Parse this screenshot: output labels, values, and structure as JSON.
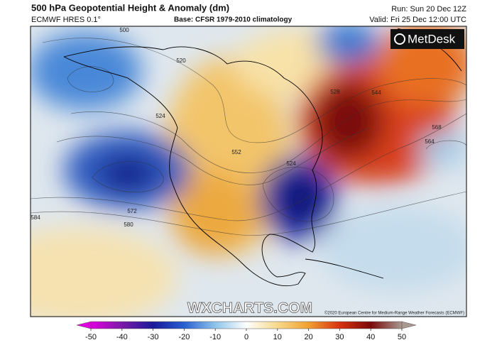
{
  "header": {
    "title": "500 hPa Geopotential Height & Anomaly (dm)",
    "model": "ECMWF HRES 0.1°",
    "base": "Base: CFSR 1979-2010 climatology",
    "run": "Run: Sun 20 Dec 12Z",
    "valid": "Valid: Fri 25 Dec 12:00 UTC"
  },
  "logo": "MetDesk",
  "watermark": "WXCHARTS.COM",
  "copyright": "©2020 European Centre for Medium-Range Weather Forecasts (ECMWF)",
  "contour_labels": [
    "500",
    "520",
    "524",
    "528",
    "544",
    "552",
    "524",
    "568",
    "564",
    "572",
    "580",
    "584"
  ],
  "colorbar": {
    "ticks": [
      -50,
      -40,
      -30,
      -20,
      -10,
      0,
      10,
      20,
      30,
      40,
      50
    ]
  }
}
